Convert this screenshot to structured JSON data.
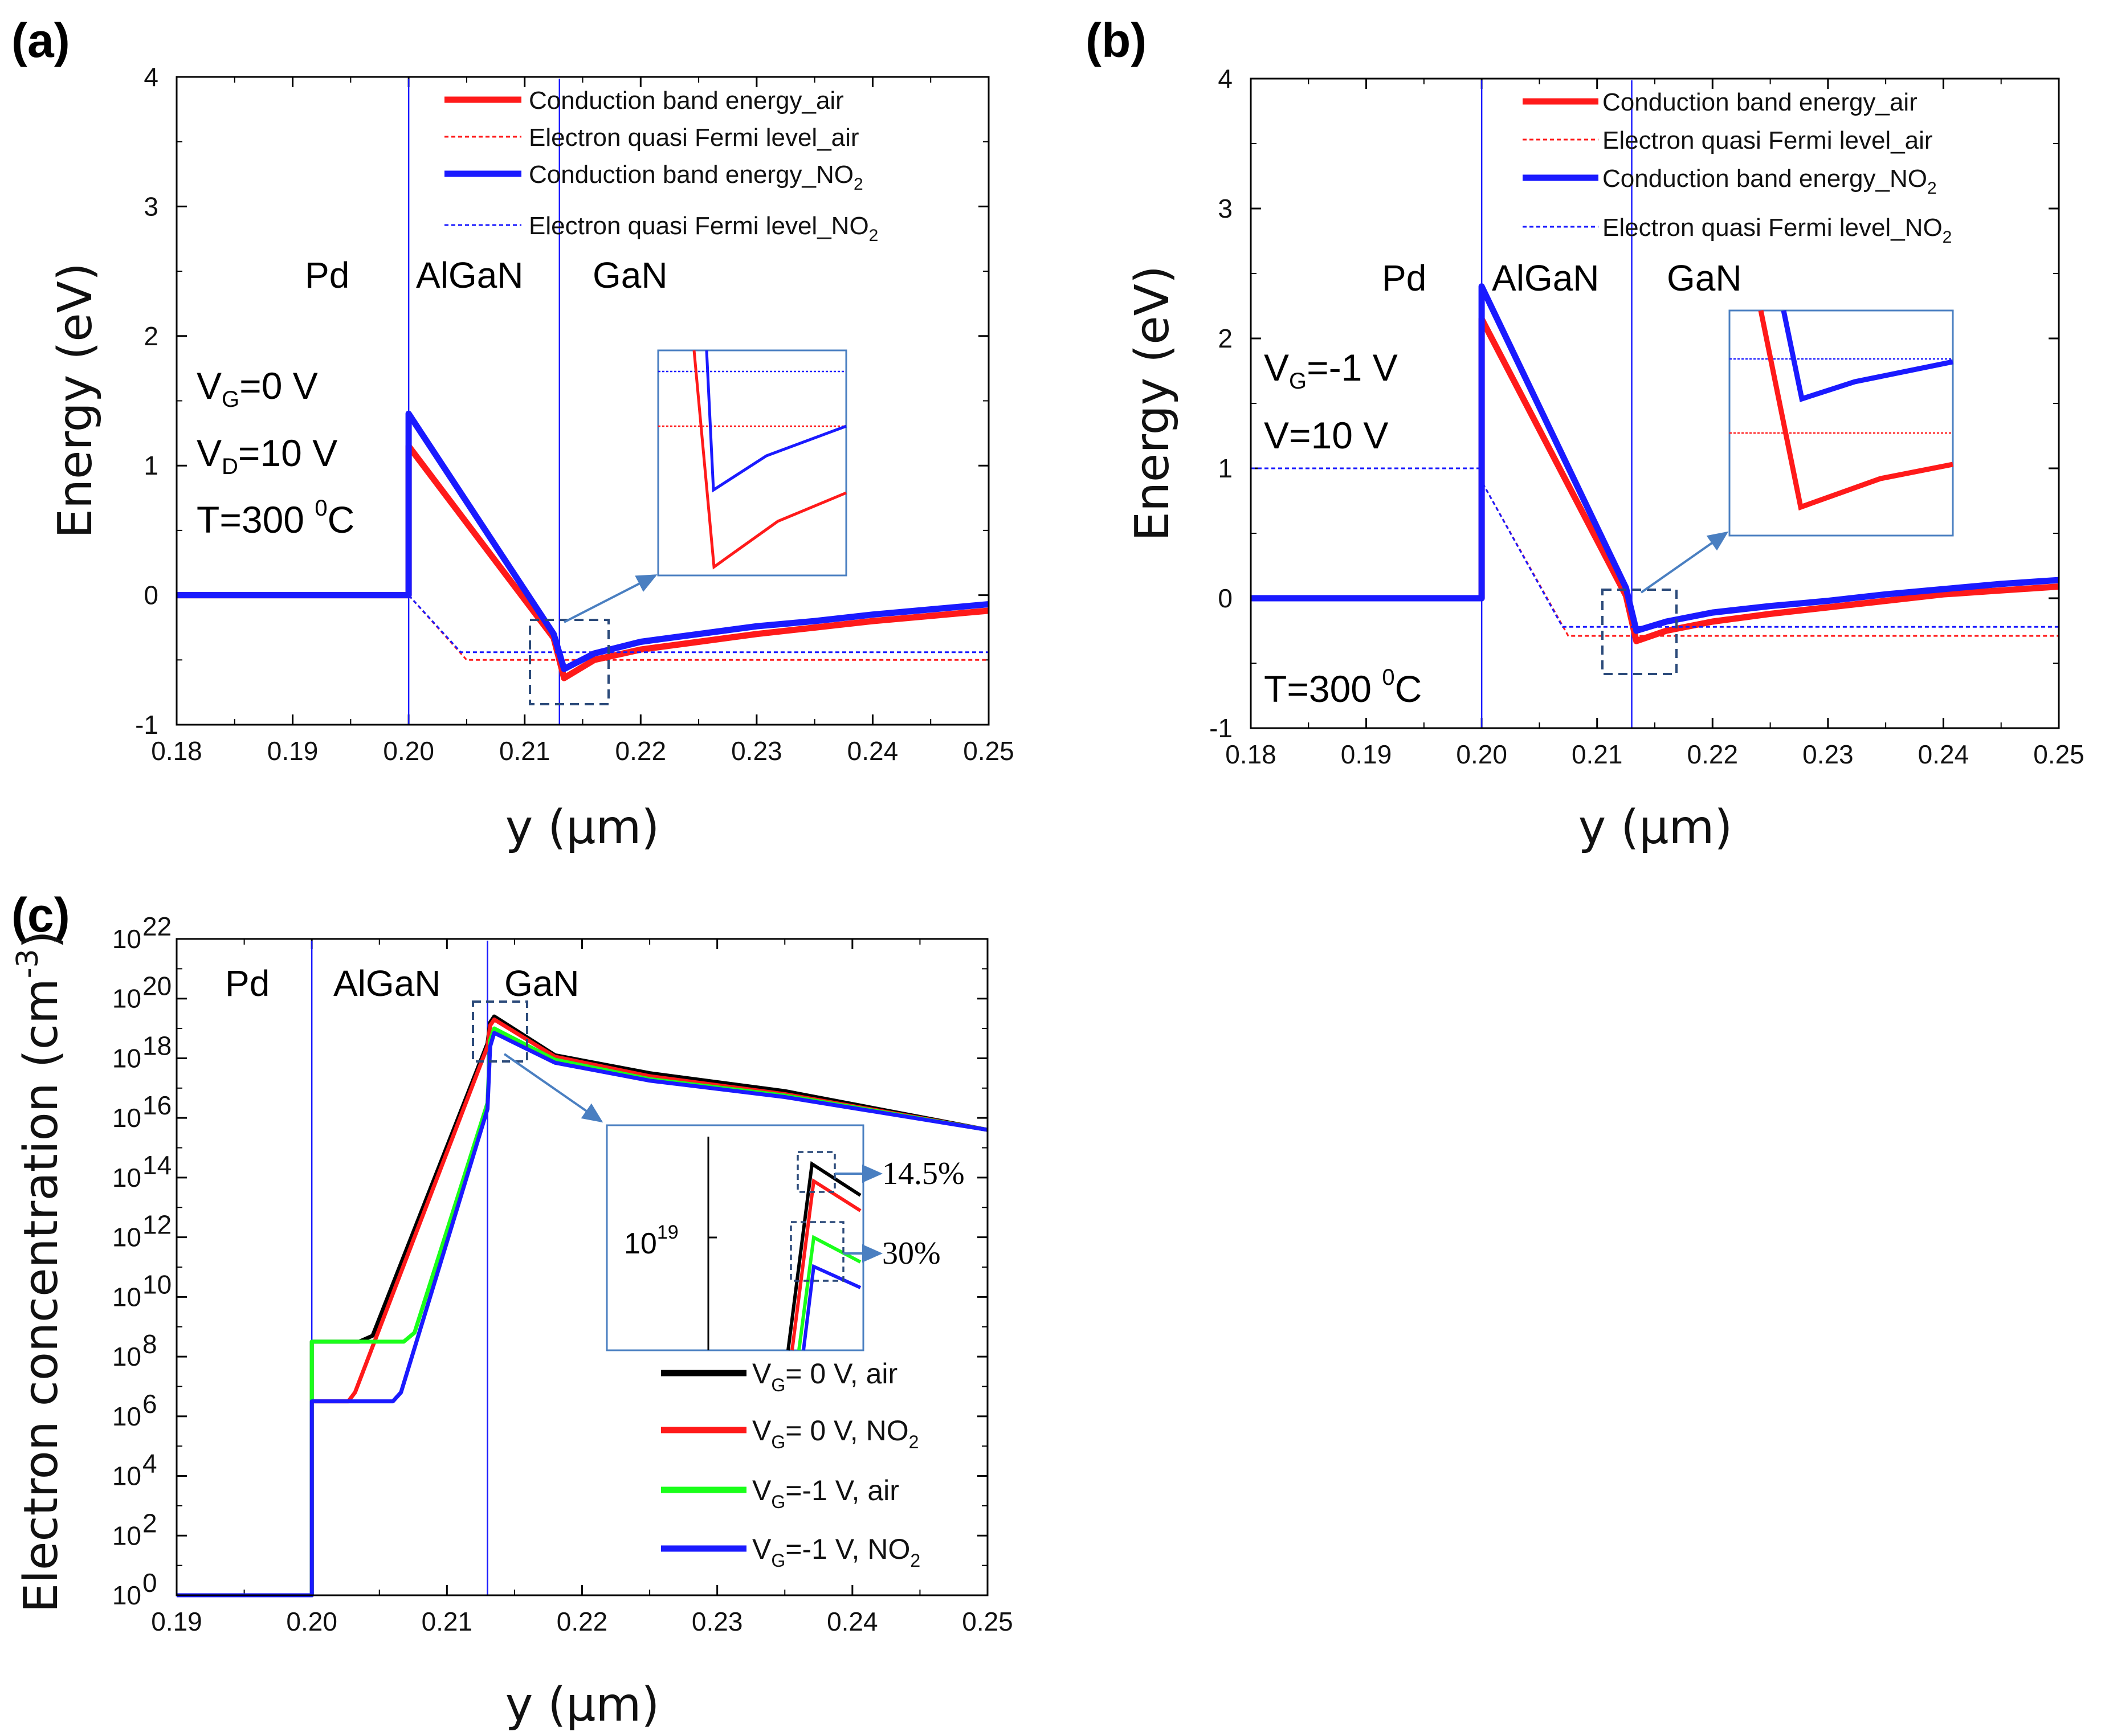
{
  "chart_data": [
    {
      "panel": "(a)",
      "type": "line",
      "xlabel": "y (μm)",
      "ylabel": "Energy (eV)",
      "xlim": [
        0.18,
        0.25
      ],
      "ylim": [
        -1,
        4
      ],
      "xticks": [
        "0.18",
        "0.19",
        "0.20",
        "0.21",
        "0.22",
        "0.23",
        "0.24",
        "0.25"
      ],
      "yticks": [
        "-1",
        "0",
        "1",
        "2",
        "3",
        "4"
      ],
      "regions": [
        "Pd",
        "AlGaN",
        "GaN"
      ],
      "boundaries": [
        0.2,
        0.213
      ],
      "conditions": [
        {
          "main": "V",
          "sub": "G",
          "rest": "=0 V"
        },
        {
          "main": "V",
          "sub": "D",
          "rest": "=10 V"
        },
        {
          "main": "T=300 ",
          "sup": "0",
          "rest": "C"
        }
      ],
      "legend": [
        {
          "main": "Conduction band energy_air",
          "sub": ""
        },
        {
          "main": "Electron quasi Fermi level_air",
          "sub": ""
        },
        {
          "main": "Conduction band energy_NO",
          "sub": "2"
        },
        {
          "main": "Electron quasi Fermi level_NO",
          "sub": "2"
        }
      ],
      "legend_position": "top-right",
      "series": [
        {
          "color": "#ff1a1a",
          "style": "solid",
          "x": [
            0.18,
            0.2,
            0.2,
            0.2125,
            0.2134,
            0.216,
            0.22,
            0.225,
            0.23,
            0.235,
            0.24,
            0.245,
            0.25
          ],
          "y": [
            0,
            0,
            1.15,
            -0.33,
            -0.64,
            -0.5,
            -0.42,
            -0.36,
            -0.3,
            -0.25,
            -0.2,
            -0.16,
            -0.12
          ]
        },
        {
          "color": "#ff1a1a",
          "style": "dash",
          "x": [
            0.18,
            0.2,
            0.205,
            0.25
          ],
          "y": [
            0,
            0,
            -0.5,
            -0.5
          ]
        },
        {
          "color": "#1a1aff",
          "style": "solid",
          "x": [
            0.18,
            0.2,
            0.2,
            0.2125,
            0.2134,
            0.216,
            0.22,
            0.225,
            0.23,
            0.235,
            0.24,
            0.245,
            0.25
          ],
          "y": [
            0,
            0,
            1.4,
            -0.3,
            -0.57,
            -0.45,
            -0.36,
            -0.3,
            -0.24,
            -0.2,
            -0.15,
            -0.11,
            -0.07
          ]
        },
        {
          "color": "#1a1aff",
          "style": "dash",
          "x": [
            0.18,
            0.2,
            0.2045,
            0.25
          ],
          "y": [
            0,
            0,
            -0.44,
            -0.44
          ]
        }
      ]
    },
    {
      "panel": "(b)",
      "type": "line",
      "xlabel": "y (μm)",
      "ylabel": "Energy (eV)",
      "xlim": [
        0.18,
        0.25
      ],
      "ylim": [
        -1,
        4
      ],
      "xticks": [
        "0.18",
        "0.19",
        "0.20",
        "0.21",
        "0.22",
        "0.23",
        "0.24",
        "0.25"
      ],
      "yticks": [
        "-1",
        "0",
        "1",
        "2",
        "3",
        "4"
      ],
      "regions": [
        "Pd",
        "AlGaN",
        "GaN"
      ],
      "boundaries": [
        0.2,
        0.213
      ],
      "conditions": [
        {
          "main": "V",
          "sub": "G",
          "rest": "=-1 V"
        },
        {
          "main": "V=10 V",
          "sub": "",
          "rest": ""
        },
        {
          "main": "T=300 ",
          "sup": "0",
          "rest": "C"
        }
      ],
      "legend": [
        {
          "main": "Conduction band energy_air",
          "sub": ""
        },
        {
          "main": "Electron quasi Fermi level_air",
          "sub": ""
        },
        {
          "main": "Conduction band energy_NO",
          "sub": "2"
        },
        {
          "main": "Electron quasi Fermi level_NO",
          "sub": "2"
        }
      ],
      "legend_position": "top-right",
      "series": [
        {
          "color": "#ff1a1a",
          "style": "solid",
          "x": [
            0.18,
            0.2,
            0.2,
            0.2125,
            0.2134,
            0.216,
            0.22,
            0.225,
            0.23,
            0.235,
            0.24,
            0.245,
            0.25
          ],
          "y": [
            0,
            0,
            2.15,
            0.02,
            -0.33,
            -0.25,
            -0.18,
            -0.12,
            -0.07,
            -0.02,
            0.03,
            0.06,
            0.09
          ]
        },
        {
          "color": "#ff1a1a",
          "style": "dash",
          "x": [
            0.18,
            0.2,
            0.2,
            0.2075,
            0.25
          ],
          "y": [
            1.0,
            1.0,
            0.9,
            -0.29,
            -0.29
          ]
        },
        {
          "color": "#1a1aff",
          "style": "solid",
          "x": [
            0.18,
            0.2,
            0.2,
            0.2125,
            0.2134,
            0.216,
            0.22,
            0.225,
            0.23,
            0.235,
            0.24,
            0.245,
            0.25
          ],
          "y": [
            0,
            0,
            2.4,
            0.08,
            -0.25,
            -0.18,
            -0.11,
            -0.06,
            -0.02,
            0.03,
            0.07,
            0.11,
            0.14
          ]
        },
        {
          "color": "#1a1aff",
          "style": "dash",
          "x": [
            0.18,
            0.2,
            0.2,
            0.207,
            0.25
          ],
          "y": [
            1.0,
            1.0,
            0.9,
            -0.22,
            -0.22
          ]
        }
      ]
    },
    {
      "panel": "(c)",
      "type": "line",
      "xlabel": "y (μm)",
      "ylabel": "Electron concentration (cm^-3)",
      "ylabel_main": "Electron concentration (cm",
      "ylabel_sup": "-3",
      "ylabel_end": ")",
      "yscale": "log",
      "xlim": [
        0.19,
        0.25
      ],
      "ylim": [
        1,
        1e+22
      ],
      "xticks": [
        "0.19",
        "0.20",
        "0.21",
        "0.22",
        "0.23",
        "0.24",
        "0.25"
      ],
      "ytick_exponents": [
        "0",
        "2",
        "4",
        "6",
        "8",
        "10",
        "12",
        "14",
        "16",
        "18",
        "20",
        "22"
      ],
      "regions": [
        "Pd",
        "AlGaN",
        "GaN"
      ],
      "boundaries": [
        0.2,
        0.213
      ],
      "legend": [
        {
          "main": "V",
          "sub": "G",
          "rest": "= 0 V, air",
          "rest_sub": ""
        },
        {
          "main": "V",
          "sub": "G",
          "rest": "= 0 V, NO",
          "rest_sub": "2"
        },
        {
          "main": "V",
          "sub": "G",
          "rest": "=-1 V, air",
          "rest_sub": ""
        },
        {
          "main": "V",
          "sub": "G",
          "rest": "=-1 V, NO",
          "rest_sub": "2"
        }
      ],
      "legend_position": "bottom-right",
      "inset": {
        "ytick": "10",
        "ytick_sup": "19",
        "annotations": [
          "14.5%",
          "30%"
        ]
      },
      "series": [
        {
          "color": "#000000",
          "x": [
            0.19,
            0.2,
            0.2,
            0.2035,
            0.2045,
            0.213,
            0.2132,
            0.2135,
            0.218,
            0.225,
            0.235,
            0.25
          ],
          "y": [
            0,
            0,
            8.5,
            8.5,
            8.7,
            18.5,
            19.2,
            19.4,
            18.1,
            17.5,
            16.9,
            15.6
          ]
        },
        {
          "color": "#ff1a1a",
          "x": [
            0.19,
            0.2,
            0.2,
            0.2027,
            0.2032,
            0.213,
            0.2132,
            0.2135,
            0.218,
            0.225,
            0.235,
            0.25
          ],
          "y": [
            0,
            0,
            6.5,
            6.5,
            6.8,
            18.4,
            19.1,
            19.3,
            18.05,
            17.4,
            16.8,
            15.6
          ]
        },
        {
          "color": "#1aff1a",
          "x": [
            0.19,
            0.2,
            0.2,
            0.2068,
            0.2076,
            0.213,
            0.2132,
            0.2135,
            0.218,
            0.225,
            0.235,
            0.25
          ],
          "y": [
            0,
            0,
            8.5,
            8.5,
            8.8,
            16.5,
            18.6,
            19.0,
            17.95,
            17.3,
            16.75,
            15.6
          ]
        },
        {
          "color": "#1a1aff",
          "x": [
            0.19,
            0.2,
            0.2,
            0.206,
            0.2066,
            0.213,
            0.2132,
            0.2135,
            0.218,
            0.225,
            0.235,
            0.25
          ],
          "y": [
            0,
            0,
            6.5,
            6.5,
            6.8,
            16.3,
            18.4,
            18.85,
            17.85,
            17.25,
            16.7,
            15.6
          ]
        }
      ]
    }
  ]
}
